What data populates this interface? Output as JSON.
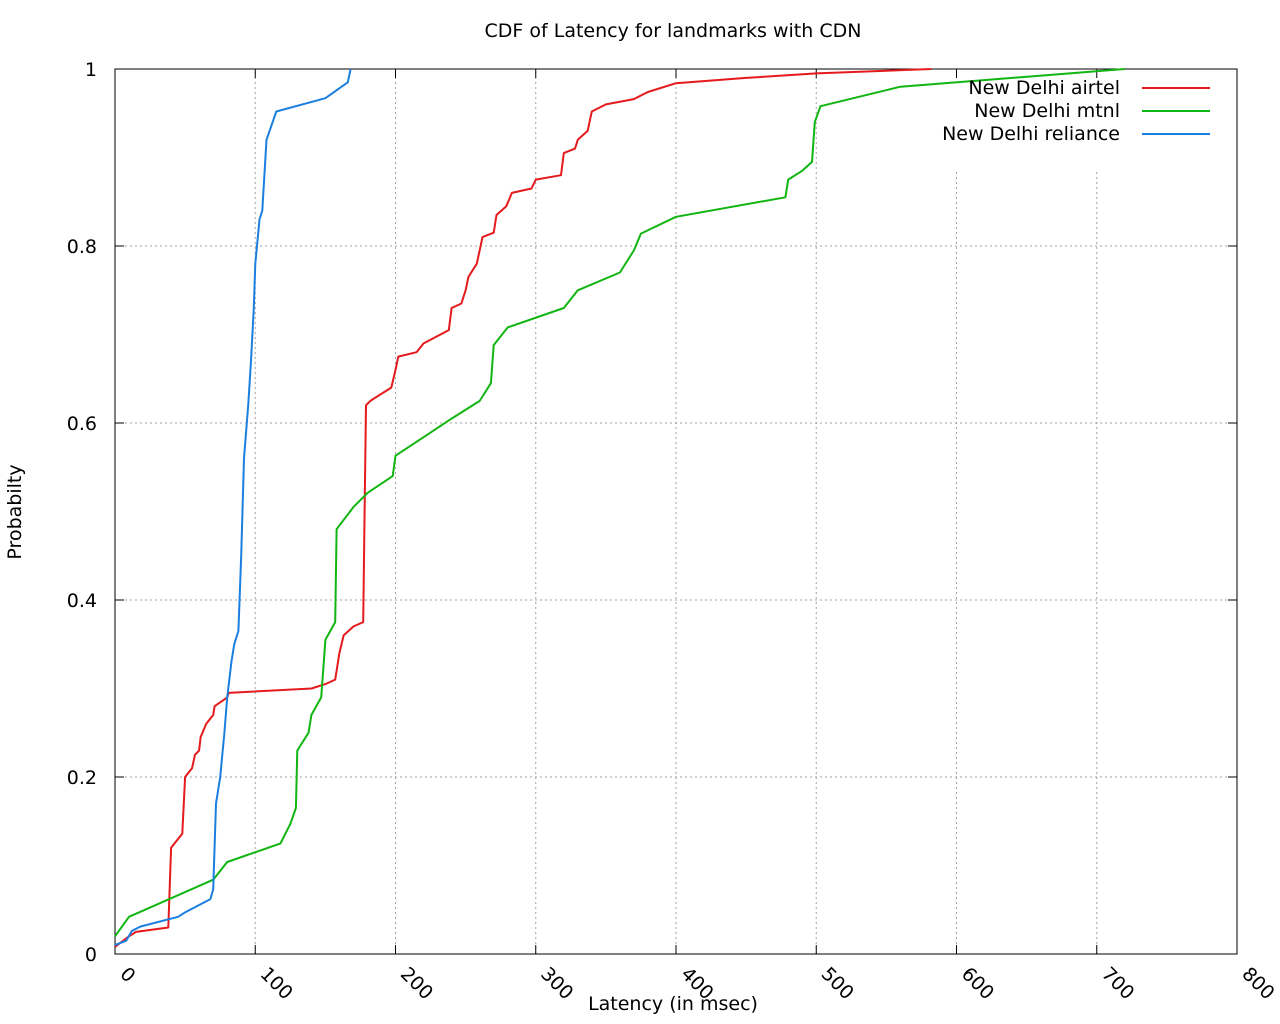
{
  "chart_data": {
    "type": "line",
    "title": "CDF of Latency for landmarks with CDN",
    "xlabel": "Latency (in msec)",
    "ylabel": "Probabilty",
    "xlim": [
      0,
      800
    ],
    "ylim": [
      0,
      1
    ],
    "x_ticks": [
      "0",
      "100",
      "200",
      "300",
      "400",
      "500",
      "600",
      "700",
      "800"
    ],
    "y_ticks": [
      "0",
      "0.2",
      "0.4",
      "0.6",
      "0.8",
      "1"
    ],
    "grid": true,
    "legend_position": "top-right",
    "series": [
      {
        "name": "New Delhi airtel",
        "color": "#e41a1c",
        "points": [
          [
            0,
            0.008
          ],
          [
            10,
            0.02
          ],
          [
            15,
            0.025
          ],
          [
            38,
            0.03
          ],
          [
            40,
            0.12
          ],
          [
            48,
            0.136
          ],
          [
            50,
            0.2
          ],
          [
            55,
            0.21
          ],
          [
            57,
            0.225
          ],
          [
            60,
            0.23
          ],
          [
            61,
            0.245
          ],
          [
            65,
            0.26
          ],
          [
            70,
            0.27
          ],
          [
            71,
            0.28
          ],
          [
            80,
            0.29
          ],
          [
            81,
            0.295
          ],
          [
            140,
            0.3
          ],
          [
            150,
            0.305
          ],
          [
            157,
            0.31
          ],
          [
            160,
            0.34
          ],
          [
            163,
            0.36
          ],
          [
            170,
            0.37
          ],
          [
            177,
            0.375
          ],
          [
            178,
            0.5
          ],
          [
            179,
            0.62
          ],
          [
            182,
            0.625
          ],
          [
            192,
            0.635
          ],
          [
            197,
            0.64
          ],
          [
            200,
            0.66
          ],
          [
            202,
            0.675
          ],
          [
            215,
            0.68
          ],
          [
            220,
            0.69
          ],
          [
            238,
            0.705
          ],
          [
            240,
            0.73
          ],
          [
            247,
            0.735
          ],
          [
            250,
            0.75
          ],
          [
            252,
            0.765
          ],
          [
            258,
            0.78
          ],
          [
            262,
            0.81
          ],
          [
            270,
            0.815
          ],
          [
            272,
            0.835
          ],
          [
            279,
            0.845
          ],
          [
            283,
            0.86
          ],
          [
            297,
            0.865
          ],
          [
            300,
            0.875
          ],
          [
            318,
            0.88
          ],
          [
            320,
            0.905
          ],
          [
            328,
            0.91
          ],
          [
            330,
            0.92
          ],
          [
            337,
            0.93
          ],
          [
            340,
            0.952
          ],
          [
            350,
            0.96
          ],
          [
            370,
            0.966
          ],
          [
            380,
            0.974
          ],
          [
            400,
            0.984
          ],
          [
            450,
            0.99
          ],
          [
            500,
            0.995
          ],
          [
            582,
            1.0
          ]
        ]
      },
      {
        "name": "New Delhi mtnl",
        "color": "#11b511",
        "points": [
          [
            0,
            0.02
          ],
          [
            10,
            0.042
          ],
          [
            70,
            0.084
          ],
          [
            80,
            0.104
          ],
          [
            118,
            0.125
          ],
          [
            125,
            0.147
          ],
          [
            129,
            0.165
          ],
          [
            130,
            0.23
          ],
          [
            138,
            0.25
          ],
          [
            140,
            0.27
          ],
          [
            147,
            0.29
          ],
          [
            150,
            0.355
          ],
          [
            157,
            0.375
          ],
          [
            158,
            0.48
          ],
          [
            170,
            0.505
          ],
          [
            180,
            0.521
          ],
          [
            198,
            0.54
          ],
          [
            200,
            0.563
          ],
          [
            220,
            0.584
          ],
          [
            240,
            0.605
          ],
          [
            260,
            0.625
          ],
          [
            268,
            0.645
          ],
          [
            270,
            0.688
          ],
          [
            280,
            0.708
          ],
          [
            320,
            0.73
          ],
          [
            330,
            0.75
          ],
          [
            360,
            0.77
          ],
          [
            370,
            0.795
          ],
          [
            375,
            0.814
          ],
          [
            400,
            0.833
          ],
          [
            478,
            0.855
          ],
          [
            480,
            0.875
          ],
          [
            490,
            0.885
          ],
          [
            497,
            0.895
          ],
          [
            499,
            0.94
          ],
          [
            503,
            0.958
          ],
          [
            560,
            0.98
          ],
          [
            720,
            1.0
          ]
        ]
      },
      {
        "name": "New Delhi reliance",
        "color": "#1b7fe0",
        "points": [
          [
            0,
            0.01
          ],
          [
            8,
            0.015
          ],
          [
            12,
            0.026
          ],
          [
            18,
            0.031
          ],
          [
            45,
            0.042
          ],
          [
            50,
            0.047
          ],
          [
            68,
            0.062
          ],
          [
            70,
            0.073
          ],
          [
            72,
            0.17
          ],
          [
            75,
            0.2
          ],
          [
            78,
            0.25
          ],
          [
            80,
            0.29
          ],
          [
            83,
            0.33
          ],
          [
            85,
            0.35
          ],
          [
            88,
            0.365
          ],
          [
            90,
            0.45
          ],
          [
            92,
            0.56
          ],
          [
            95,
            0.62
          ],
          [
            97,
            0.67
          ],
          [
            99,
            0.73
          ],
          [
            100,
            0.78
          ],
          [
            103,
            0.83
          ],
          [
            105,
            0.84
          ],
          [
            108,
            0.92
          ],
          [
            115,
            0.952
          ],
          [
            150,
            0.967
          ],
          [
            166,
            0.985
          ],
          [
            168,
            1.0
          ]
        ]
      }
    ]
  }
}
